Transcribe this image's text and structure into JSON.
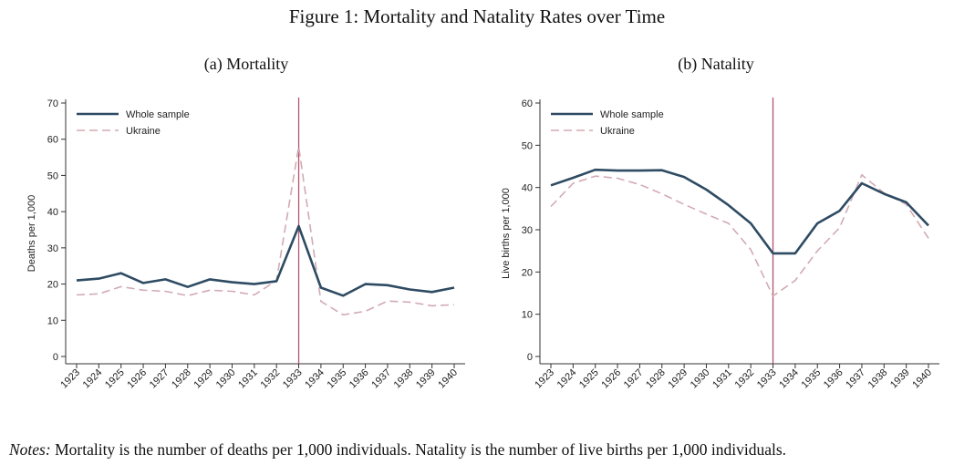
{
  "figure_title": "Figure 1: Mortality and Natality Rates over Time",
  "notes": {
    "lead": "Notes:",
    "text": "Mortality is the number of deaths per 1,000 individuals. Natality is the number of live births per 1,000 individuals."
  },
  "colors": {
    "whole": "#2e4b63",
    "ukraine": "#d2aab4",
    "vline": "#b35470"
  },
  "chart_data": [
    {
      "type": "line",
      "title": "(a) Mortality",
      "ylabel": "Deaths per 1,000",
      "xlabel": "",
      "categories": [
        "1923",
        "1924",
        "1925",
        "1926",
        "1927",
        "1928",
        "1929",
        "1930",
        "1931",
        "1932",
        "1933",
        "1934",
        "1935",
        "1936",
        "1937",
        "1938",
        "1939",
        "1940"
      ],
      "ylim": [
        0,
        70
      ],
      "yticks": [
        0,
        10,
        20,
        30,
        40,
        50,
        60,
        70
      ],
      "vline": "1933",
      "legend": "top-left",
      "grid": false,
      "series": [
        {
          "name": "Whole sample",
          "style": "solid",
          "values": [
            21,
            21.5,
            23,
            20.3,
            21.3,
            19.2,
            21.3,
            20.5,
            20,
            20.8,
            36,
            19,
            16.8,
            20,
            19.7,
            18.5,
            17.8,
            19
          ]
        },
        {
          "name": "Ukraine",
          "style": "dashed",
          "values": [
            17,
            17.3,
            19.3,
            18.3,
            18,
            16.8,
            18.3,
            18,
            17,
            21,
            58,
            15.2,
            11.5,
            12.5,
            15.3,
            15,
            14,
            14.3
          ]
        }
      ]
    },
    {
      "type": "line",
      "title": "(b) Natality",
      "ylabel": "Live births per 1,000",
      "xlabel": "",
      "categories": [
        "1923",
        "1924",
        "1925",
        "1926",
        "1927",
        "1928",
        "1929",
        "1930",
        "1931",
        "1932",
        "1933",
        "1934",
        "1935",
        "1936",
        "1937",
        "1938",
        "1939",
        "1940"
      ],
      "ylim": [
        0,
        60
      ],
      "yticks": [
        0,
        10,
        20,
        30,
        40,
        50,
        60
      ],
      "vline": "1933",
      "legend": "top-left",
      "grid": false,
      "series": [
        {
          "name": "Whole sample",
          "style": "solid",
          "values": [
            40.5,
            42.3,
            44.2,
            44,
            44,
            44.1,
            42.5,
            39.5,
            35.8,
            31.5,
            24.4,
            24.4,
            31.5,
            34.5,
            41,
            38.5,
            36.5,
            31
          ]
        },
        {
          "name": "Ukraine",
          "style": "dashed",
          "values": [
            35.5,
            41,
            42.7,
            42.2,
            40.7,
            38.5,
            36,
            33.7,
            31.5,
            25.3,
            14.3,
            18,
            25,
            30.5,
            43,
            38.7,
            36,
            28
          ]
        }
      ]
    }
  ]
}
